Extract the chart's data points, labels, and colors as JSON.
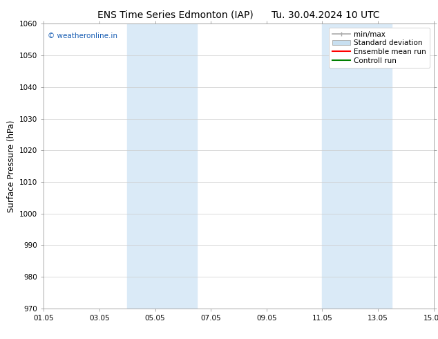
{
  "title_left": "ENS Time Series Edmonton (IAP)",
  "title_right": "Tu. 30.04.2024 10 UTC",
  "ylabel": "Surface Pressure (hPa)",
  "ylim": [
    970,
    1060
  ],
  "yticks": [
    970,
    980,
    990,
    1000,
    1010,
    1020,
    1030,
    1040,
    1050,
    1060
  ],
  "xlim_start": 0,
  "xlim_end": 14,
  "xtick_labels": [
    "01.05",
    "03.05",
    "05.05",
    "07.05",
    "09.05",
    "11.05",
    "13.05",
    "15.05"
  ],
  "xtick_positions": [
    0,
    2,
    4,
    6,
    8,
    10,
    12,
    14
  ],
  "shaded_bands": [
    {
      "x_start": 3.0,
      "x_end": 5.5,
      "color": "#daeaf7"
    },
    {
      "x_start": 10.0,
      "x_end": 12.5,
      "color": "#daeaf7"
    }
  ],
  "watermark_text": "© weatheronline.in",
  "watermark_color": "#1a5fb4",
  "watermark_fontsize": 7.5,
  "legend_entries": [
    {
      "label": "min/max",
      "color": "#aaaaaa",
      "style": "minmax"
    },
    {
      "label": "Standard deviation",
      "color": "#c8dff0",
      "style": "rect"
    },
    {
      "label": "Ensemble mean run",
      "color": "red",
      "style": "line"
    },
    {
      "label": "Controll run",
      "color": "green",
      "style": "line"
    }
  ],
  "bg_color": "white",
  "grid_color": "#cccccc",
  "title_fontsize": 10,
  "tick_fontsize": 7.5,
  "ylabel_fontsize": 8.5,
  "legend_fontsize": 7.5
}
